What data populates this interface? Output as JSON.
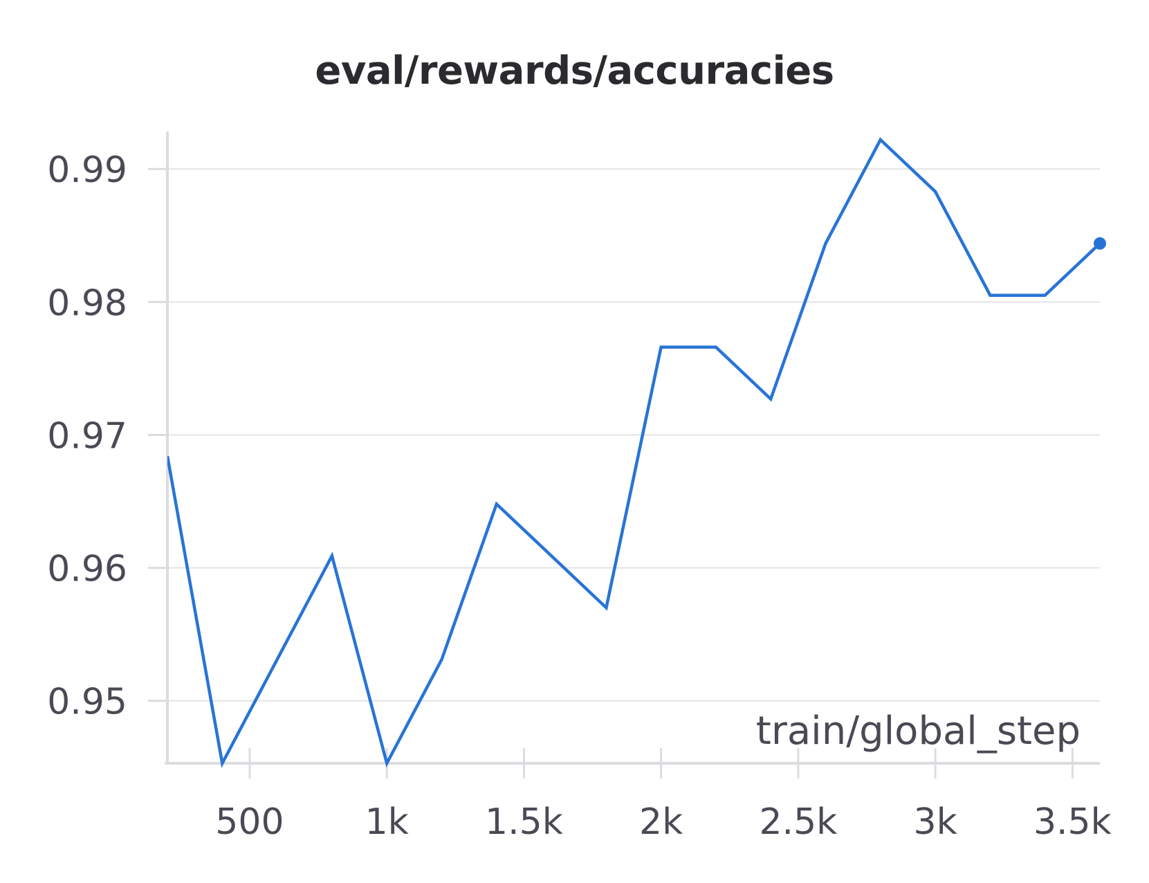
{
  "chart_data": {
    "type": "line",
    "title": "eval/rewards/accuracies",
    "xlabel": "train/global_step",
    "ylabel": "",
    "xlim": [
      200,
      3600
    ],
    "ylim": [
      0.9453,
      0.9923
    ],
    "x_ticks": [
      500,
      1000,
      1500,
      2000,
      2500,
      3000,
      3500
    ],
    "x_tick_labels": [
      "500",
      "1k",
      "1.5k",
      "2k",
      "2.5k",
      "3k",
      "3.5k"
    ],
    "y_ticks": [
      0.95,
      0.96,
      0.97,
      0.98,
      0.99
    ],
    "y_tick_labels": [
      "0.95",
      "0.96",
      "0.97",
      "0.98",
      "0.99"
    ],
    "grid": true,
    "series": [
      {
        "color": "#2874d6",
        "x": [
          200,
          400,
          600,
          800,
          1000,
          1200,
          1400,
          1600,
          1800,
          2000,
          2200,
          2400,
          2600,
          2800,
          3000,
          3200,
          3400,
          3600
        ],
        "y": [
          0.9684,
          0.9453,
          0.9531,
          0.9609,
          0.9453,
          0.9531,
          0.9648,
          0.9609,
          0.957,
          0.9766,
          0.9766,
          0.9727,
          0.9844,
          0.9922,
          0.9883,
          0.9805,
          0.9805,
          0.9844
        ]
      }
    ]
  }
}
